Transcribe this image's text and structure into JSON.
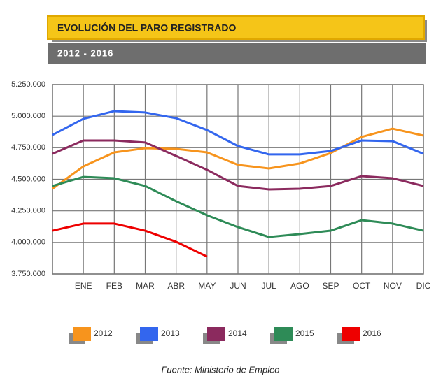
{
  "chart_data": {
    "type": "line",
    "title": "EVOLUCIÓN DEL PARO REGISTRADO",
    "subtitle": "2012 - 2016",
    "source": "Fuente: Ministerio de Empleo",
    "categories": [
      null,
      "ENE",
      "FEB",
      "MAR",
      "ABR",
      "MAY",
      "JUN",
      "JUL",
      "AGO",
      "SEP",
      "OCT",
      "NOV",
      "DIC"
    ],
    "ylim": [
      3750000,
      5250000
    ],
    "yticks": [
      {
        "value": 3750000,
        "label": "3.750.000"
      },
      {
        "value": 4000000,
        "label": "4.000.000"
      },
      {
        "value": 4250000,
        "label": "4.250.000"
      },
      {
        "value": 4500000,
        "label": "4.500.000"
      },
      {
        "value": 4750000,
        "label": "4.750.000"
      },
      {
        "value": 5000000,
        "label": "5.000.000"
      },
      {
        "value": 5250000,
        "label": "5.250.000"
      }
    ],
    "grid": true,
    "series": [
      {
        "name": "2012",
        "color": "#f7941d",
        "values": [
          4425000,
          4602000,
          4713000,
          4746000,
          4741000,
          4713000,
          4614000,
          4586000,
          4625000,
          4708000,
          4835000,
          4901000,
          4846000
        ]
      },
      {
        "name": "2013",
        "color": "#3366ee",
        "values": [
          4851000,
          4979000,
          5040000,
          5029000,
          4984000,
          4890000,
          4763000,
          4697000,
          4697000,
          4724000,
          4807000,
          4802000,
          4702000
        ]
      },
      {
        "name": "2014",
        "color": "#8b2a5e",
        "values": [
          4702000,
          4807000,
          4807000,
          4791000,
          4685000,
          4575000,
          4447000,
          4420000,
          4425000,
          4447000,
          4525000,
          4508000,
          4447000
        ]
      },
      {
        "name": "2015",
        "color": "#2e8b57",
        "values": [
          4447000,
          4519000,
          4508000,
          4447000,
          4326000,
          4215000,
          4121000,
          4043000,
          4066000,
          4093000,
          4176000,
          4149000,
          4093000
        ]
      },
      {
        "name": "2016",
        "color": "#ee0000",
        "values": [
          4093000,
          4149000,
          4149000,
          4093000,
          4005000,
          3888000,
          null,
          null,
          null,
          null,
          null,
          null,
          null
        ]
      }
    ]
  }
}
